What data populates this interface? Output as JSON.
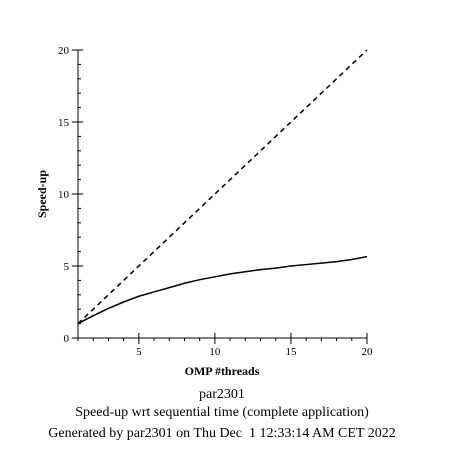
{
  "chart_data": {
    "type": "line",
    "xlabel": "OMP #threads",
    "ylabel": "Speed-up",
    "xlim": [
      1,
      20
    ],
    "ylim": [
      0,
      20
    ],
    "x_ticks": [
      5,
      10,
      15,
      20
    ],
    "y_ticks": [
      0,
      5,
      10,
      15,
      20
    ],
    "x_minor_step": 1,
    "y_minor_step": 1,
    "grid": false,
    "captions": [
      "par2301",
      "Speed-up wrt sequential time (complete application)",
      "Generated by par2301 on Thu Dec  1 12:33:14 AM CET 2022"
    ],
    "series": [
      {
        "style": "dashed",
        "color": "#000000",
        "x": [
          1,
          20
        ],
        "y": [
          1,
          20
        ]
      },
      {
        "style": "solid",
        "color": "#000000",
        "x": [
          1,
          2,
          3,
          4,
          5,
          6,
          7,
          8,
          9,
          10,
          11,
          12,
          13,
          14,
          15,
          16,
          17,
          18,
          19,
          20
        ],
        "y": [
          1.0,
          1.55,
          2.05,
          2.5,
          2.9,
          3.2,
          3.5,
          3.8,
          4.05,
          4.25,
          4.45,
          4.6,
          4.75,
          4.85,
          5.0,
          5.1,
          5.2,
          5.3,
          5.45,
          5.65
        ]
      }
    ]
  }
}
